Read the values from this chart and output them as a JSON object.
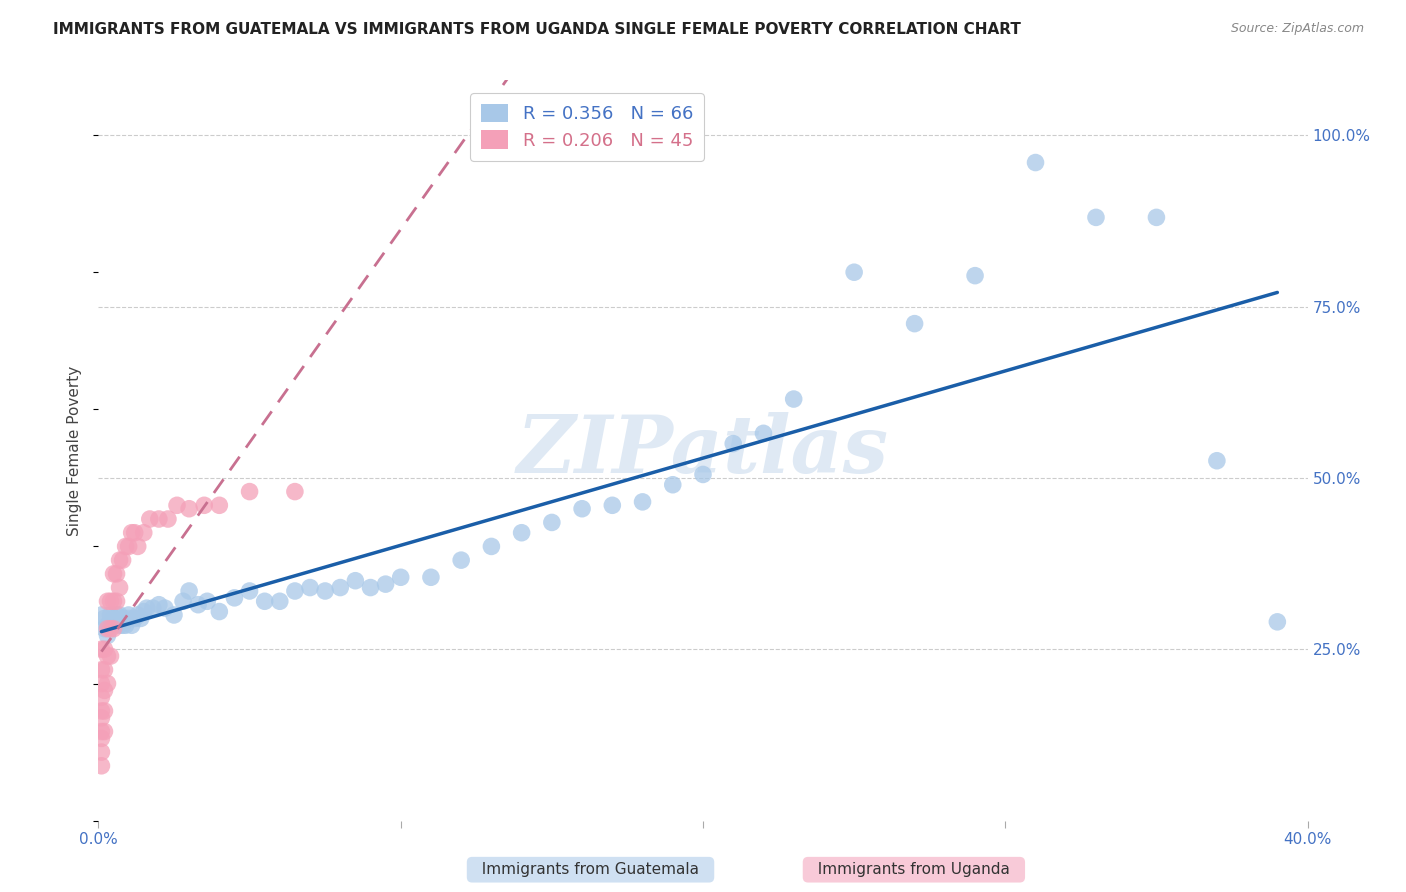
{
  "title": "IMMIGRANTS FROM GUATEMALA VS IMMIGRANTS FROM UGANDA SINGLE FEMALE POVERTY CORRELATION CHART",
  "source": "Source: ZipAtlas.com",
  "ylabel": "Single Female Poverty",
  "ytick_labels": [
    "100.0%",
    "75.0%",
    "50.0%",
    "25.0%"
  ],
  "ytick_positions": [
    1.0,
    0.75,
    0.5,
    0.25
  ],
  "xlim": [
    0.0,
    0.4
  ],
  "ylim": [
    0.0,
    1.08
  ],
  "watermark": "ZIPatlas",
  "blue_color": "#a8c8e8",
  "pink_color": "#f4a0b8",
  "line_blue": "#1a5ea8",
  "line_pink": "#c87090",
  "title_fontsize": 11,
  "axis_label_fontsize": 11,
  "tick_fontsize": 11,
  "background_color": "#ffffff",
  "guatemala_x": [
    0.001,
    0.002,
    0.002,
    0.003,
    0.003,
    0.004,
    0.004,
    0.005,
    0.005,
    0.006,
    0.006,
    0.007,
    0.007,
    0.008,
    0.008,
    0.009,
    0.01,
    0.01,
    0.011,
    0.012,
    0.013,
    0.014,
    0.015,
    0.016,
    0.018,
    0.02,
    0.022,
    0.025,
    0.028,
    0.03,
    0.033,
    0.036,
    0.04,
    0.045,
    0.05,
    0.055,
    0.06,
    0.065,
    0.07,
    0.075,
    0.08,
    0.085,
    0.09,
    0.095,
    0.1,
    0.11,
    0.12,
    0.13,
    0.14,
    0.15,
    0.16,
    0.17,
    0.18,
    0.19,
    0.2,
    0.21,
    0.22,
    0.23,
    0.25,
    0.27,
    0.29,
    0.31,
    0.33,
    0.35,
    0.37,
    0.39
  ],
  "guatemala_y": [
    0.3,
    0.28,
    0.295,
    0.27,
    0.285,
    0.3,
    0.285,
    0.295,
    0.285,
    0.3,
    0.29,
    0.285,
    0.3,
    0.285,
    0.295,
    0.285,
    0.295,
    0.3,
    0.285,
    0.295,
    0.3,
    0.295,
    0.305,
    0.31,
    0.31,
    0.315,
    0.31,
    0.3,
    0.32,
    0.335,
    0.315,
    0.32,
    0.305,
    0.325,
    0.335,
    0.32,
    0.32,
    0.335,
    0.34,
    0.335,
    0.34,
    0.35,
    0.34,
    0.345,
    0.355,
    0.355,
    0.38,
    0.4,
    0.42,
    0.435,
    0.455,
    0.46,
    0.465,
    0.49,
    0.505,
    0.55,
    0.565,
    0.615,
    0.8,
    0.725,
    0.795,
    0.96,
    0.88,
    0.88,
    0.525,
    0.29
  ],
  "uganda_x": [
    0.001,
    0.001,
    0.001,
    0.001,
    0.001,
    0.001,
    0.001,
    0.001,
    0.001,
    0.001,
    0.002,
    0.002,
    0.002,
    0.002,
    0.002,
    0.003,
    0.003,
    0.003,
    0.003,
    0.004,
    0.004,
    0.004,
    0.005,
    0.005,
    0.005,
    0.006,
    0.006,
    0.007,
    0.007,
    0.008,
    0.009,
    0.01,
    0.011,
    0.012,
    0.013,
    0.015,
    0.017,
    0.02,
    0.023,
    0.026,
    0.03,
    0.035,
    0.04,
    0.05,
    0.065
  ],
  "uganda_y": [
    0.08,
    0.1,
    0.12,
    0.13,
    0.15,
    0.16,
    0.18,
    0.2,
    0.22,
    0.25,
    0.13,
    0.16,
    0.19,
    0.22,
    0.25,
    0.2,
    0.24,
    0.28,
    0.32,
    0.24,
    0.28,
    0.32,
    0.28,
    0.32,
    0.36,
    0.32,
    0.36,
    0.34,
    0.38,
    0.38,
    0.4,
    0.4,
    0.42,
    0.42,
    0.4,
    0.42,
    0.44,
    0.44,
    0.44,
    0.46,
    0.455,
    0.46,
    0.46,
    0.48,
    0.48
  ]
}
